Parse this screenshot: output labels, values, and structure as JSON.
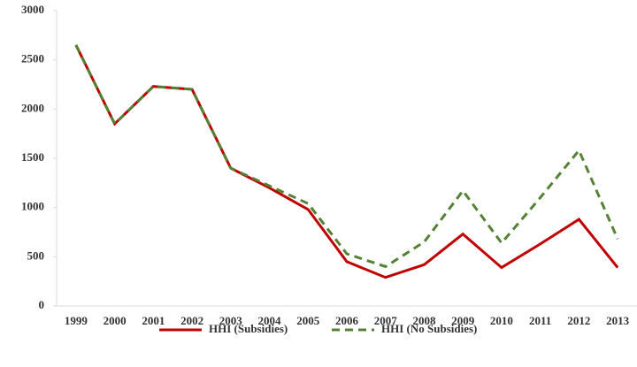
{
  "chart_data": {
    "type": "line",
    "categories": [
      "1999",
      "2000",
      "2001",
      "2002",
      "2003",
      "2004",
      "2005",
      "2006",
      "2007",
      "2008",
      "2009",
      "2010",
      "2011",
      "2012",
      "2013"
    ],
    "series": [
      {
        "name": "HHI (Subsidies)",
        "color": "#c00000",
        "dashed": false,
        "values": [
          2650,
          1850,
          2230,
          2200,
          1400,
          1200,
          980,
          450,
          290,
          420,
          730,
          390,
          630,
          880,
          390
        ]
      },
      {
        "name": "HHI (No Subsidies)",
        "color": "#548235",
        "dashed": true,
        "values": [
          2650,
          1850,
          2230,
          2200,
          1400,
          1220,
          1040,
          530,
          400,
          650,
          1170,
          640,
          1100,
          1580,
          680
        ]
      }
    ],
    "ylim": [
      0,
      3000
    ],
    "yticks": [
      0,
      500,
      1000,
      1500,
      2000,
      2500,
      3000
    ],
    "grid": false,
    "legend": "bottom"
  }
}
